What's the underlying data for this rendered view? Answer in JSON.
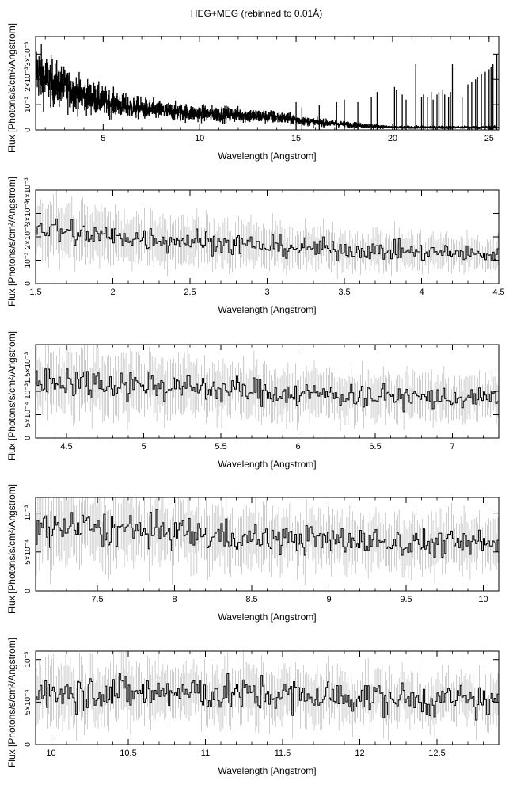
{
  "title": "HEG+MEG (rebinned to 0.01Å)",
  "chart_data": [
    {
      "type": "line",
      "xlabel": "Wavelength [Angstrom]",
      "ylabel": "Flux [Photons/s/cm²/Angstrom]",
      "xlim": [
        1.5,
        25.5
      ],
      "ylim": [
        0,
        0.0037
      ],
      "xticks": [
        {
          "v": 5,
          "label": "5"
        },
        {
          "v": 10,
          "label": "10"
        },
        {
          "v": 15,
          "label": "15"
        },
        {
          "v": 20,
          "label": "20"
        },
        {
          "v": 25,
          "label": "25"
        }
      ],
      "yticks": [
        {
          "v": 0,
          "label": "0"
        },
        {
          "v": 0.001,
          "label": "10⁻³"
        },
        {
          "v": 0.002,
          "label": "2×10⁻³"
        },
        {
          "v": 0.003,
          "label": "3×10⁻³"
        }
      ],
      "anchors": [
        [
          1.5,
          0.0024
        ],
        [
          2.0,
          0.002
        ],
        [
          3.0,
          0.00165
        ],
        [
          4.0,
          0.00135
        ],
        [
          5.0,
          0.00115
        ],
        [
          6.0,
          0.00095
        ],
        [
          7.0,
          0.00085
        ],
        [
          8.0,
          0.00075
        ],
        [
          10.0,
          0.00065
        ],
        [
          12.0,
          0.0006
        ],
        [
          13.0,
          0.00055
        ],
        [
          14.0,
          0.0005
        ],
        [
          15.0,
          0.0004
        ],
        [
          16.0,
          0.0003
        ],
        [
          18.0,
          0.0002
        ],
        [
          20.0,
          0.0001
        ],
        [
          25.5,
          0.0001
        ]
      ],
      "spikes": [
        [
          15.0,
          0.0011
        ],
        [
          15.3,
          0.0009
        ],
        [
          16.2,
          0.001
        ],
        [
          17.1,
          0.0011
        ],
        [
          17.5,
          0.0012
        ],
        [
          18.2,
          0.0011
        ],
        [
          18.9,
          0.0013
        ],
        [
          19.2,
          0.0015
        ],
        [
          20.1,
          0.0017
        ],
        [
          20.2,
          0.0016
        ],
        [
          20.5,
          0.0014
        ],
        [
          20.7,
          0.0012
        ],
        [
          21.2,
          0.0026
        ],
        [
          21.5,
          0.0013
        ],
        [
          21.6,
          0.0014
        ],
        [
          21.8,
          0.0013
        ],
        [
          22.0,
          0.0015
        ],
        [
          22.1,
          0.0012
        ],
        [
          22.3,
          0.0014
        ],
        [
          22.4,
          0.0015
        ],
        [
          22.6,
          0.0016
        ],
        [
          22.7,
          0.0014
        ],
        [
          22.9,
          0.0013
        ],
        [
          23.0,
          0.0015
        ],
        [
          23.1,
          0.0026
        ],
        [
          23.6,
          0.0013
        ],
        [
          23.9,
          0.0018
        ],
        [
          24.1,
          0.0019
        ],
        [
          24.3,
          0.002
        ],
        [
          24.4,
          0.0021
        ],
        [
          24.6,
          0.0022
        ],
        [
          24.8,
          0.0023
        ],
        [
          25.0,
          0.0024
        ],
        [
          25.1,
          0.0025
        ],
        [
          25.2,
          0.0026
        ],
        [
          25.4,
          0.003
        ]
      ],
      "step": 0.01,
      "noise": 0.35,
      "errors": false
    },
    {
      "type": "line",
      "xlabel": "Wavelength [Angstrom]",
      "ylabel": "Flux [Photons/s/cm²/Angstrom]",
      "xlim": [
        1.5,
        4.5
      ],
      "ylim": [
        0,
        0.004
      ],
      "xticks": [
        {
          "v": 1.5,
          "label": "1.5"
        },
        {
          "v": 2,
          "label": "2"
        },
        {
          "v": 2.5,
          "label": "2.5"
        },
        {
          "v": 3,
          "label": "3"
        },
        {
          "v": 3.5,
          "label": "3.5"
        },
        {
          "v": 4,
          "label": "4"
        },
        {
          "v": 4.5,
          "label": "4.5"
        }
      ],
      "yticks": [
        {
          "v": 0,
          "label": "0"
        },
        {
          "v": 0.001,
          "label": "10⁻³"
        },
        {
          "v": 0.002,
          "label": "2×10⁻³"
        },
        {
          "v": 0.003,
          "label": "3×10⁻³"
        },
        {
          "v": 0.004,
          "label": "4×10⁻³"
        }
      ],
      "anchors": [
        [
          1.5,
          0.0024
        ],
        [
          1.7,
          0.0022
        ],
        [
          2.0,
          0.002
        ],
        [
          2.5,
          0.00185
        ],
        [
          3.0,
          0.0016
        ],
        [
          3.5,
          0.00145
        ],
        [
          4.0,
          0.00135
        ],
        [
          4.5,
          0.0012
        ]
      ],
      "spikes": [],
      "step": 0.01,
      "noise": 0.2,
      "errors": true
    },
    {
      "type": "line",
      "xlabel": "Wavelength [Angstrom]",
      "ylabel": "Flux [Photons/s/cm²/Angstrom]",
      "xlim": [
        4.3,
        7.3
      ],
      "ylim": [
        0,
        0.002
      ],
      "xticks": [
        {
          "v": 4.5,
          "label": "4.5"
        },
        {
          "v": 5,
          "label": "5"
        },
        {
          "v": 5.5,
          "label": "5.5"
        },
        {
          "v": 6,
          "label": "6"
        },
        {
          "v": 6.5,
          "label": "6.5"
        },
        {
          "v": 7,
          "label": "7"
        }
      ],
      "yticks": [
        {
          "v": 0,
          "label": "0"
        },
        {
          "v": 0.0005,
          "label": "5×10⁻⁴"
        },
        {
          "v": 0.001,
          "label": "10⁻³"
        },
        {
          "v": 0.0015,
          "label": "1.5×10⁻³"
        }
      ],
      "anchors": [
        [
          4.3,
          0.00125
        ],
        [
          5.0,
          0.00115
        ],
        [
          5.5,
          0.00105
        ],
        [
          6.0,
          0.00095
        ],
        [
          6.5,
          0.0009
        ],
        [
          7.0,
          0.00085
        ],
        [
          7.3,
          0.00082
        ]
      ],
      "spikes": [],
      "step": 0.01,
      "noise": 0.2,
      "errors": true
    },
    {
      "type": "line",
      "xlabel": "Wavelength [Angstrom]",
      "ylabel": "Flux [Photons/s/cm²/Angstrom]",
      "xlim": [
        7.1,
        10.1
      ],
      "ylim": [
        0,
        0.0012
      ],
      "xticks": [
        {
          "v": 7.5,
          "label": "7.5"
        },
        {
          "v": 8,
          "label": "8"
        },
        {
          "v": 8.5,
          "label": "8.5"
        },
        {
          "v": 9,
          "label": "9"
        },
        {
          "v": 9.5,
          "label": "9.5"
        },
        {
          "v": 10,
          "label": "10"
        }
      ],
      "yticks": [
        {
          "v": 0,
          "label": "0"
        },
        {
          "v": 0.0005,
          "label": "5×10⁻⁴"
        },
        {
          "v": 0.001,
          "label": "10⁻³"
        }
      ],
      "anchors": [
        [
          7.1,
          0.00082
        ],
        [
          7.5,
          0.0008
        ],
        [
          8.0,
          0.00075
        ],
        [
          8.5,
          0.00068
        ],
        [
          9.0,
          0.00065
        ],
        [
          9.5,
          0.00062
        ],
        [
          10.1,
          0.0006
        ]
      ],
      "spikes": [],
      "step": 0.01,
      "noise": 0.2,
      "errors": true
    },
    {
      "type": "line",
      "xlabel": "Wavelength [Angstrom]",
      "ylabel": "Flux [Photons/s/cm²/Angstrom]",
      "xlim": [
        9.9,
        12.9
      ],
      "ylim": [
        0,
        0.0011
      ],
      "xticks": [
        {
          "v": 10,
          "label": "10"
        },
        {
          "v": 10.5,
          "label": "10.5"
        },
        {
          "v": 11,
          "label": "11"
        },
        {
          "v": 11.5,
          "label": "11.5"
        },
        {
          "v": 12,
          "label": "12"
        },
        {
          "v": 12.5,
          "label": "12.5"
        }
      ],
      "yticks": [
        {
          "v": 0,
          "label": "0"
        },
        {
          "v": 0.0005,
          "label": "5×10⁻⁴"
        },
        {
          "v": 0.001,
          "label": "10⁻³"
        }
      ],
      "anchors": [
        [
          9.9,
          0.00065
        ],
        [
          10.5,
          0.00062
        ],
        [
          11.0,
          0.0006
        ],
        [
          11.5,
          0.00058
        ],
        [
          12.0,
          0.00055
        ],
        [
          12.5,
          0.00052
        ],
        [
          12.9,
          0.0005
        ]
      ],
      "spikes": [],
      "step": 0.01,
      "noise": 0.25,
      "errors": true
    }
  ]
}
